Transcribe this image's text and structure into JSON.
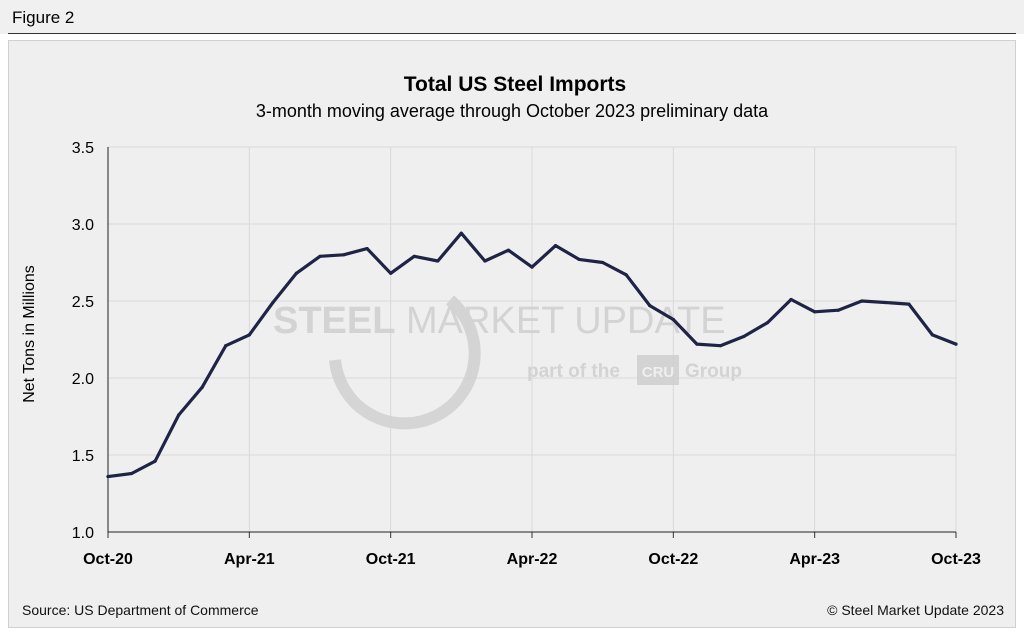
{
  "figure_label": "Figure 2",
  "source": "Source: US Department of Commerce",
  "copyright": "© Steel Market Update 2023",
  "watermark": {
    "main_bold": "STEEL",
    "main_light": " MARKET UPDATE",
    "sub_left": "part of the",
    "logo": "CRU",
    "sub_right": "Group"
  },
  "colors": {
    "line": "#1f2447",
    "panel": "#efefef",
    "grid": "#d9d9d9"
  },
  "chart_data": {
    "type": "line",
    "title": "Total US Steel Imports",
    "subtitle": "3-month moving average through October 2023 preliminary data",
    "xlabel": "",
    "ylabel": "Net Tons in Millions",
    "ylim": [
      1.0,
      3.5
    ],
    "yticks": [
      "1.0",
      "1.5",
      "2.0",
      "2.5",
      "3.0",
      "3.5"
    ],
    "ytick_values": [
      1.0,
      1.5,
      2.0,
      2.5,
      3.0,
      3.5
    ],
    "xtick_labels": [
      "Oct-20",
      "Apr-21",
      "Oct-21",
      "Apr-22",
      "Oct-22",
      "Apr-23",
      "Oct-23"
    ],
    "xtick_indices": [
      0,
      6,
      12,
      18,
      24,
      30,
      36
    ],
    "grid": true,
    "legend": "none",
    "series": [
      {
        "name": "Total US Steel Imports",
        "values": [
          1.36,
          1.38,
          1.46,
          1.76,
          1.94,
          2.21,
          2.28,
          2.49,
          2.68,
          2.79,
          2.8,
          2.84,
          2.68,
          2.79,
          2.76,
          2.94,
          2.76,
          2.83,
          2.72,
          2.86,
          2.77,
          2.75,
          2.67,
          2.47,
          2.38,
          2.22,
          2.21,
          2.27,
          2.36,
          2.51,
          2.43,
          2.44,
          2.5,
          2.49,
          2.48,
          2.28,
          2.22
        ]
      }
    ]
  }
}
